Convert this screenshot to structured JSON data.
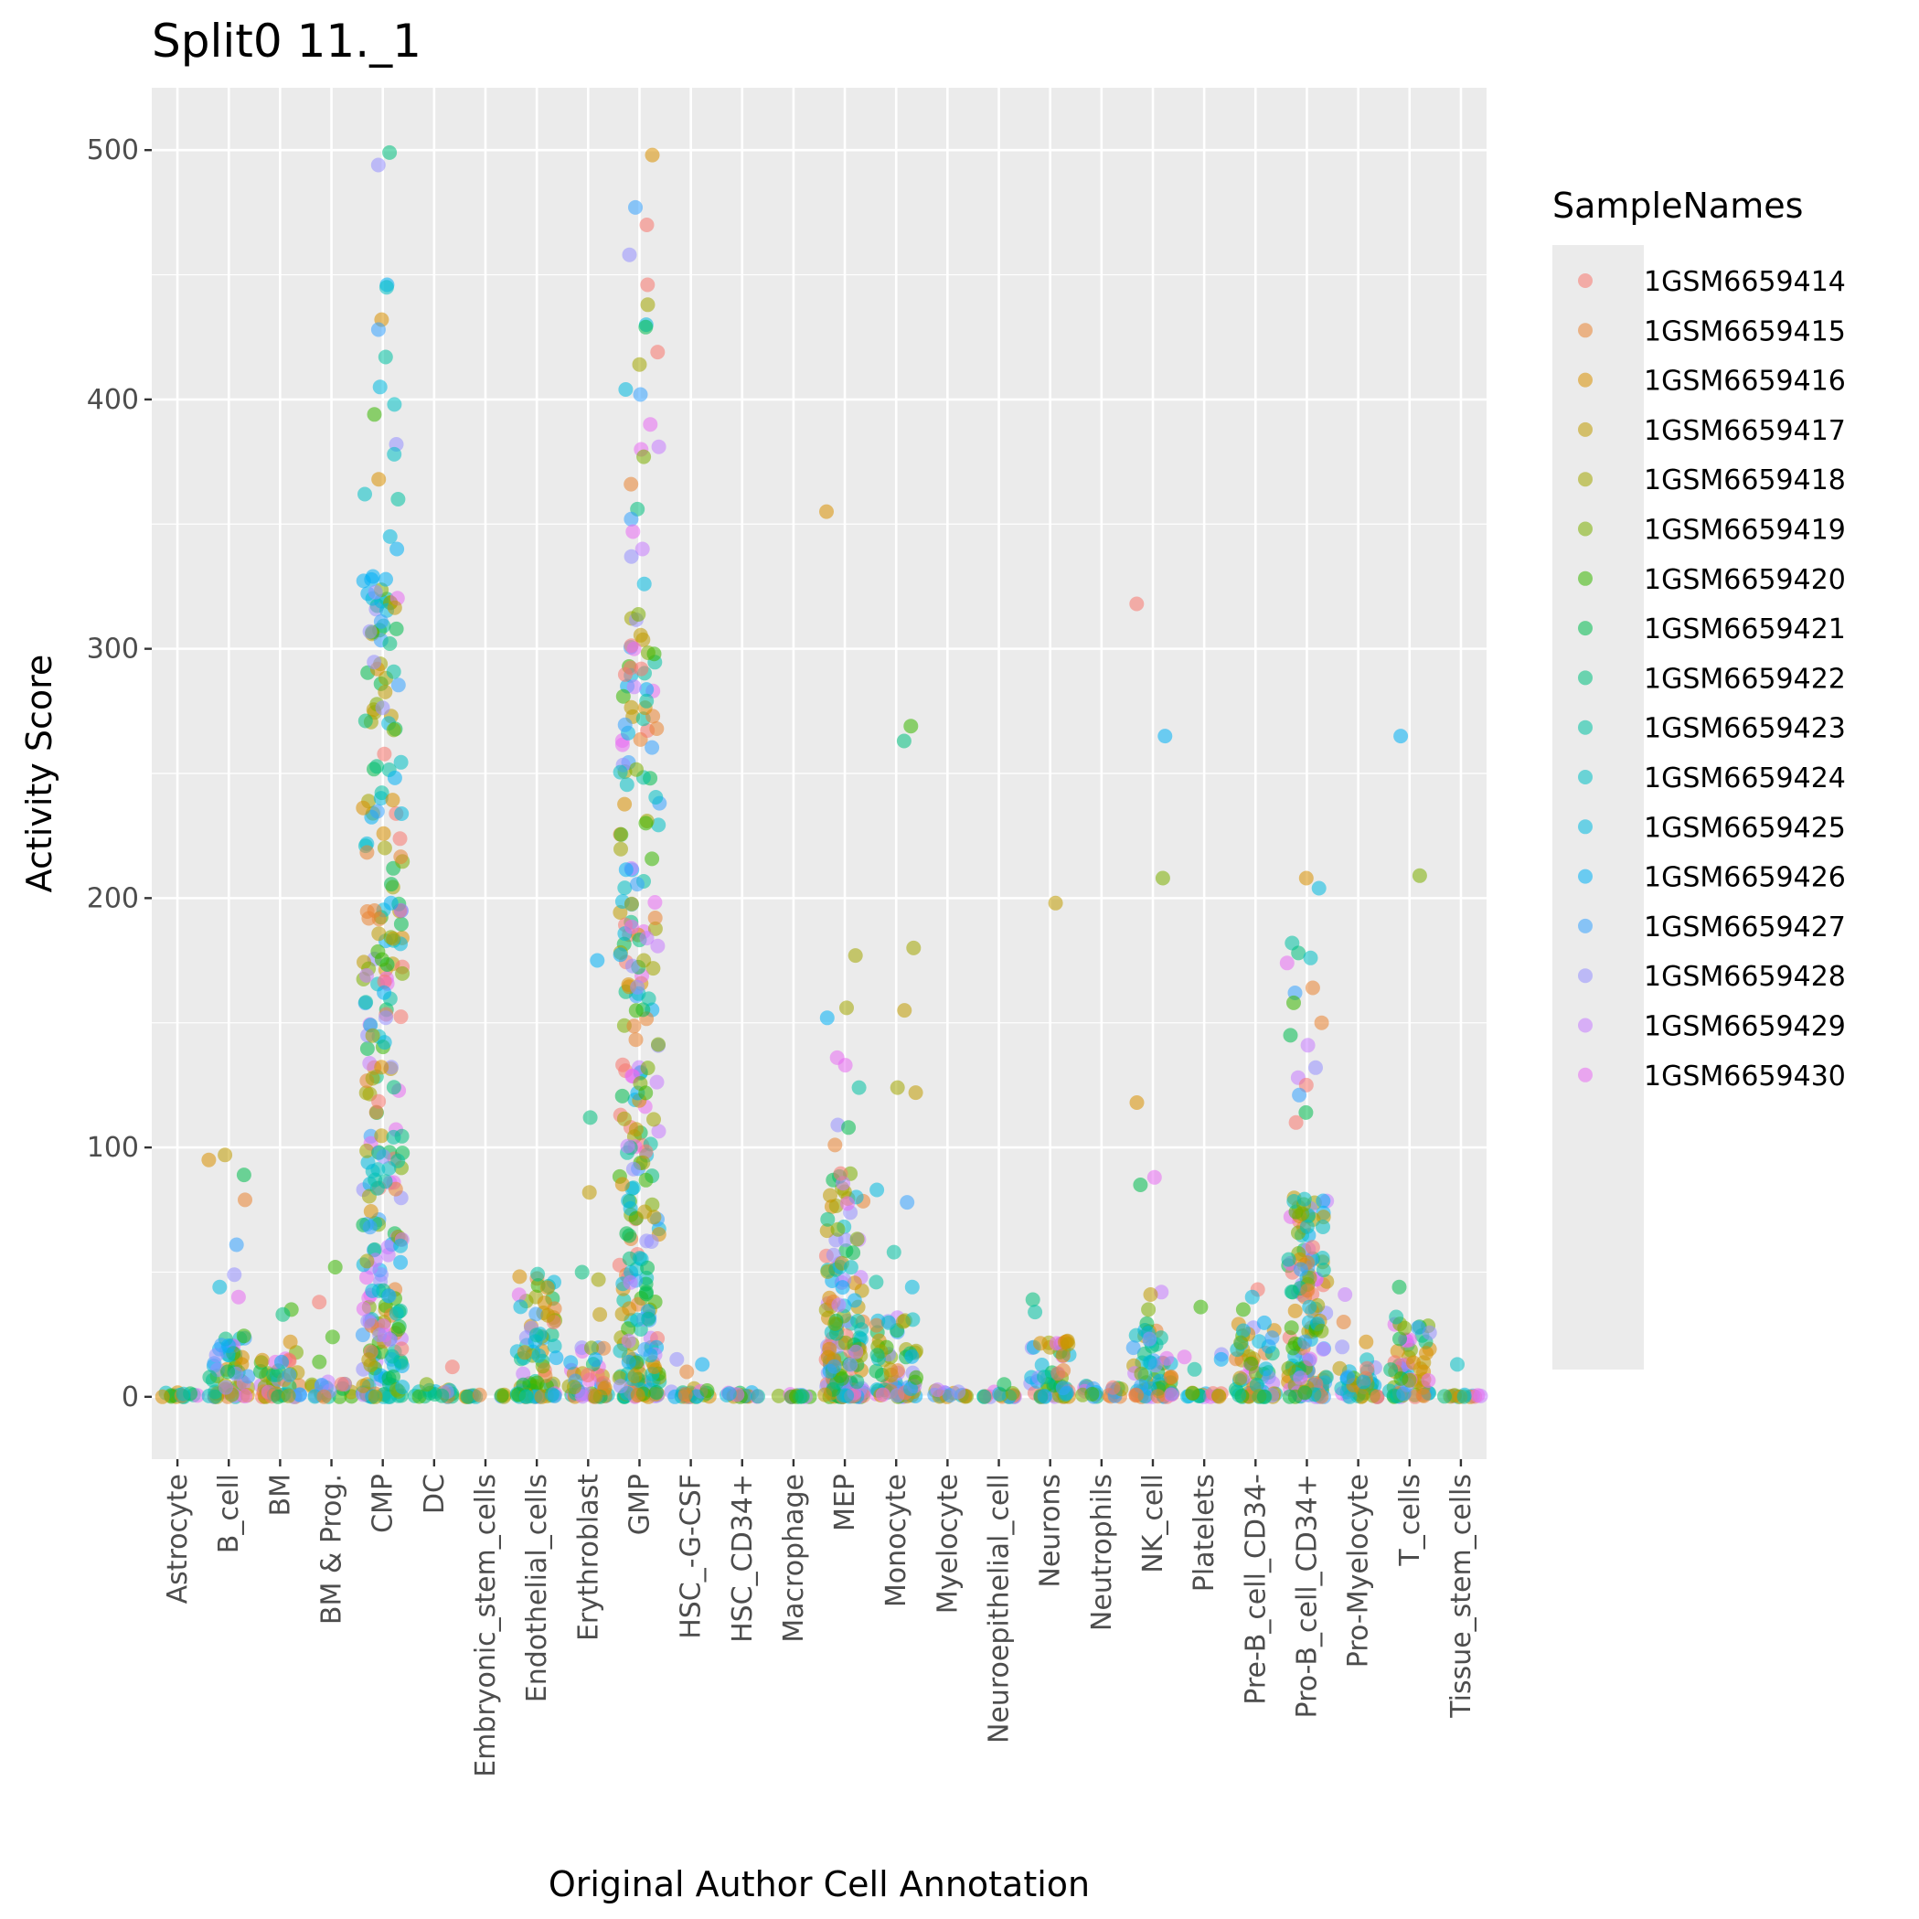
{
  "chart_data": {
    "type": "scatter",
    "title": "Split0 11._1",
    "xlabel": "Original Author Cell Annotation",
    "ylabel": "Activity Score",
    "ylim": [
      -25,
      525
    ],
    "yticks": [
      0,
      100,
      200,
      300,
      400,
      500
    ],
    "grid": true,
    "legend_position": "right",
    "legend_title": "SampleNames",
    "categories": [
      "Astrocyte",
      "B_cell",
      "BM",
      "BM & Prog.",
      "CMP",
      "DC",
      "Embryonic_stem_cells",
      "Endothelial_cells",
      "Erythroblast",
      "GMP",
      "HSC_-G-CSF",
      "HSC_CD34+",
      "Macrophage",
      "MEP",
      "Monocyte",
      "Myelocyte",
      "Neuroepithelial_cell",
      "Neurons",
      "Neutrophils",
      "NK_cell",
      "Platelets",
      "Pre-B_cell_CD34-",
      "Pro-B_cell_CD34+",
      "Pro-Myelocyte",
      "T_cells",
      "Tissue_stem_cells"
    ],
    "series": [
      {
        "name": "1GSM6659414",
        "color": "#F8766D"
      },
      {
        "name": "1GSM6659415",
        "color": "#EA8331"
      },
      {
        "name": "1GSM6659416",
        "color": "#D89000"
      },
      {
        "name": "1GSM6659417",
        "color": "#C09B00"
      },
      {
        "name": "1GSM6659418",
        "color": "#A3A500"
      },
      {
        "name": "1GSM6659419",
        "color": "#7CAE00"
      },
      {
        "name": "1GSM6659420",
        "color": "#39B600"
      },
      {
        "name": "1GSM6659421",
        "color": "#00BB4E"
      },
      {
        "name": "1GSM6659422",
        "color": "#00BF7D"
      },
      {
        "name": "1GSM6659423",
        "color": "#00C1A3"
      },
      {
        "name": "1GSM6659424",
        "color": "#00BFC4"
      },
      {
        "name": "1GSM6659425",
        "color": "#00BAE0"
      },
      {
        "name": "1GSM6659426",
        "color": "#00B0F6"
      },
      {
        "name": "1GSM6659427",
        "color": "#35A2FF"
      },
      {
        "name": "1GSM6659428",
        "color": "#9590FF"
      },
      {
        "name": "1GSM6659429",
        "color": "#C77CFF"
      },
      {
        "name": "1GSM6659430",
        "color": "#E76BF3"
      }
    ],
    "groups": [
      {
        "category": "Astrocyte",
        "max": 2,
        "spread": 1,
        "outliers": []
      },
      {
        "category": "B_cell",
        "max": 25,
        "spread": 18,
        "outliers": [
          97,
          95,
          89,
          79,
          61,
          49,
          44,
          40
        ]
      },
      {
        "category": "BM",
        "max": 18,
        "spread": 12,
        "outliers": [
          35,
          33,
          22
        ]
      },
      {
        "category": "BM & Prog.",
        "max": 6,
        "spread": 4,
        "outliers": [
          52,
          38,
          24,
          14
        ]
      },
      {
        "category": "CMP",
        "max": 330,
        "spread": 170,
        "outliers": [
          499,
          494,
          446,
          445,
          432,
          428,
          417,
          405,
          398,
          394,
          382,
          378,
          368,
          362,
          360,
          345,
          340
        ]
      },
      {
        "category": "DC",
        "max": 3,
        "spread": 2,
        "outliers": [
          12,
          5
        ]
      },
      {
        "category": "Embryonic_stem_cells",
        "max": 1,
        "spread": 1,
        "outliers": []
      },
      {
        "category": "Endothelial_cells",
        "max": 50,
        "spread": 1,
        "outliers": []
      },
      {
        "category": "Erythroblast",
        "max": 20,
        "spread": 12,
        "outliers": [
          175,
          112,
          82,
          50,
          47,
          33
        ]
      },
      {
        "category": "GMP",
        "max": 320,
        "spread": 130,
        "outliers": [
          498,
          477,
          470,
          458,
          446,
          438,
          430,
          429,
          419,
          414,
          404,
          402,
          390,
          381,
          380,
          377,
          366,
          356,
          352,
          347,
          340,
          337,
          326
        ]
      },
      {
        "category": "HSC_-G-CSF",
        "max": 4,
        "spread": 3,
        "outliers": [
          15,
          13,
          10
        ]
      },
      {
        "category": "HSC_CD34+",
        "max": 2,
        "spread": 1,
        "outliers": []
      },
      {
        "category": "Macrophage",
        "max": 1,
        "spread": 1,
        "outliers": []
      },
      {
        "category": "MEP",
        "max": 90,
        "spread": 40,
        "outliers": [
          355,
          177,
          156,
          152,
          136,
          133,
          124,
          109,
          108,
          101
        ]
      },
      {
        "category": "Monocyte",
        "max": 32,
        "spread": 15,
        "outliers": [
          269,
          263,
          180,
          155,
          124,
          122,
          83,
          78,
          58,
          46,
          44
        ]
      },
      {
        "category": "Myelocyte",
        "max": 3,
        "spread": 2,
        "outliers": []
      },
      {
        "category": "Neuroepithelial_cell",
        "max": 2,
        "spread": 2,
        "outliers": [
          5
        ]
      },
      {
        "category": "Neurons",
        "max": 25,
        "spread": 12,
        "outliers": [
          198,
          39,
          34
        ]
      },
      {
        "category": "Neutrophils",
        "max": 5,
        "spread": 3,
        "outliers": []
      },
      {
        "category": "NK_cell",
        "max": 30,
        "spread": 14,
        "outliers": [
          318,
          265,
          208,
          118,
          88,
          85,
          42,
          41,
          35
        ]
      },
      {
        "category": "Platelets",
        "max": 2,
        "spread": 1,
        "outliers": [
          36,
          17,
          16,
          15,
          11
        ]
      },
      {
        "category": "Pre-B_cell_CD34-",
        "max": 30,
        "spread": 15,
        "outliers": [
          43,
          40,
          35
        ]
      },
      {
        "category": "Pro-B_cell_CD34+",
        "max": 80,
        "spread": 35,
        "outliers": [
          208,
          204,
          182,
          178,
          176,
          174,
          164,
          162,
          158,
          150,
          145,
          141,
          132,
          128,
          125,
          121,
          114,
          110
        ]
      },
      {
        "category": "Pro-Myelocyte",
        "max": 15,
        "spread": 8,
        "outliers": [
          41,
          30,
          22,
          20
        ]
      },
      {
        "category": "T_cells",
        "max": 30,
        "spread": 15,
        "outliers": [
          265,
          209,
          44,
          32
        ]
      },
      {
        "category": "Tissue_stem_cells",
        "max": 1,
        "spread": 1,
        "outliers": [
          13
        ]
      }
    ]
  }
}
